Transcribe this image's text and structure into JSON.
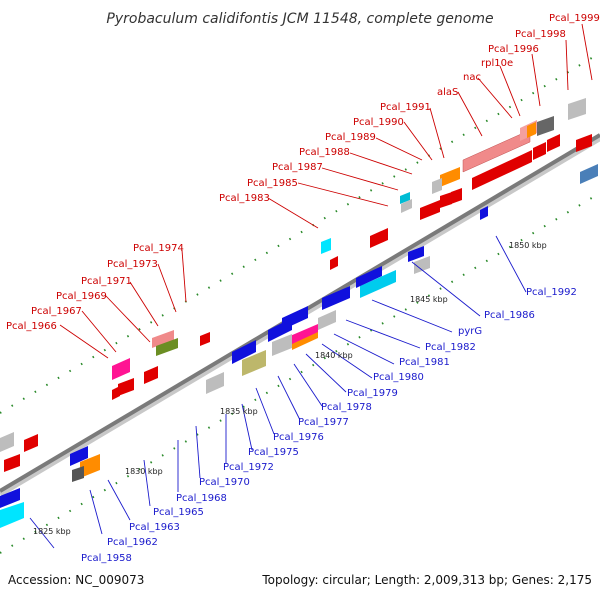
{
  "header": {
    "title": "Pyrobaculum calidifontis JCM 11548, complete genome"
  },
  "footer": {
    "accession": "Accession: NC_009073",
    "summary": "Topology: circular; Length: 2,009,313 bp; Genes: 2,175"
  },
  "scale_labels": [
    "1825 kbp",
    "1830 kbp",
    "1835 kbp",
    "1840 kbp",
    "1845 kbp",
    "1850 kbp"
  ],
  "genes_upper": [
    "Pcal_1966",
    "Pcal_1967",
    "Pcal_1969",
    "Pcal_1971",
    "Pcal_1973",
    "Pcal_1974",
    "Pcal_1983",
    "Pcal_1985",
    "Pcal_1987",
    "Pcal_1988",
    "Pcal_1989",
    "Pcal_1990",
    "Pcal_1991",
    "alaS",
    "nac",
    "rpl10e",
    "Pcal_1996",
    "Pcal_1998",
    "Pcal_1999"
  ],
  "genes_lower": [
    "Pcal_1958",
    "Pcal_1962",
    "Pcal_1963",
    "Pcal_1965",
    "Pcal_1968",
    "Pcal_1970",
    "Pcal_1972",
    "Pcal_1975",
    "Pcal_1976",
    "Pcal_1977",
    "Pcal_1978",
    "Pcal_1979",
    "Pcal_1980",
    "Pcal_1981",
    "Pcal_1982",
    "pyrG",
    "Pcal_1986",
    "Pcal_1992"
  ],
  "colors": {
    "forward_strand": "#e00000",
    "reverse_strand": "#1010dd",
    "backbone": "#888888",
    "tick": "#228b22"
  }
}
